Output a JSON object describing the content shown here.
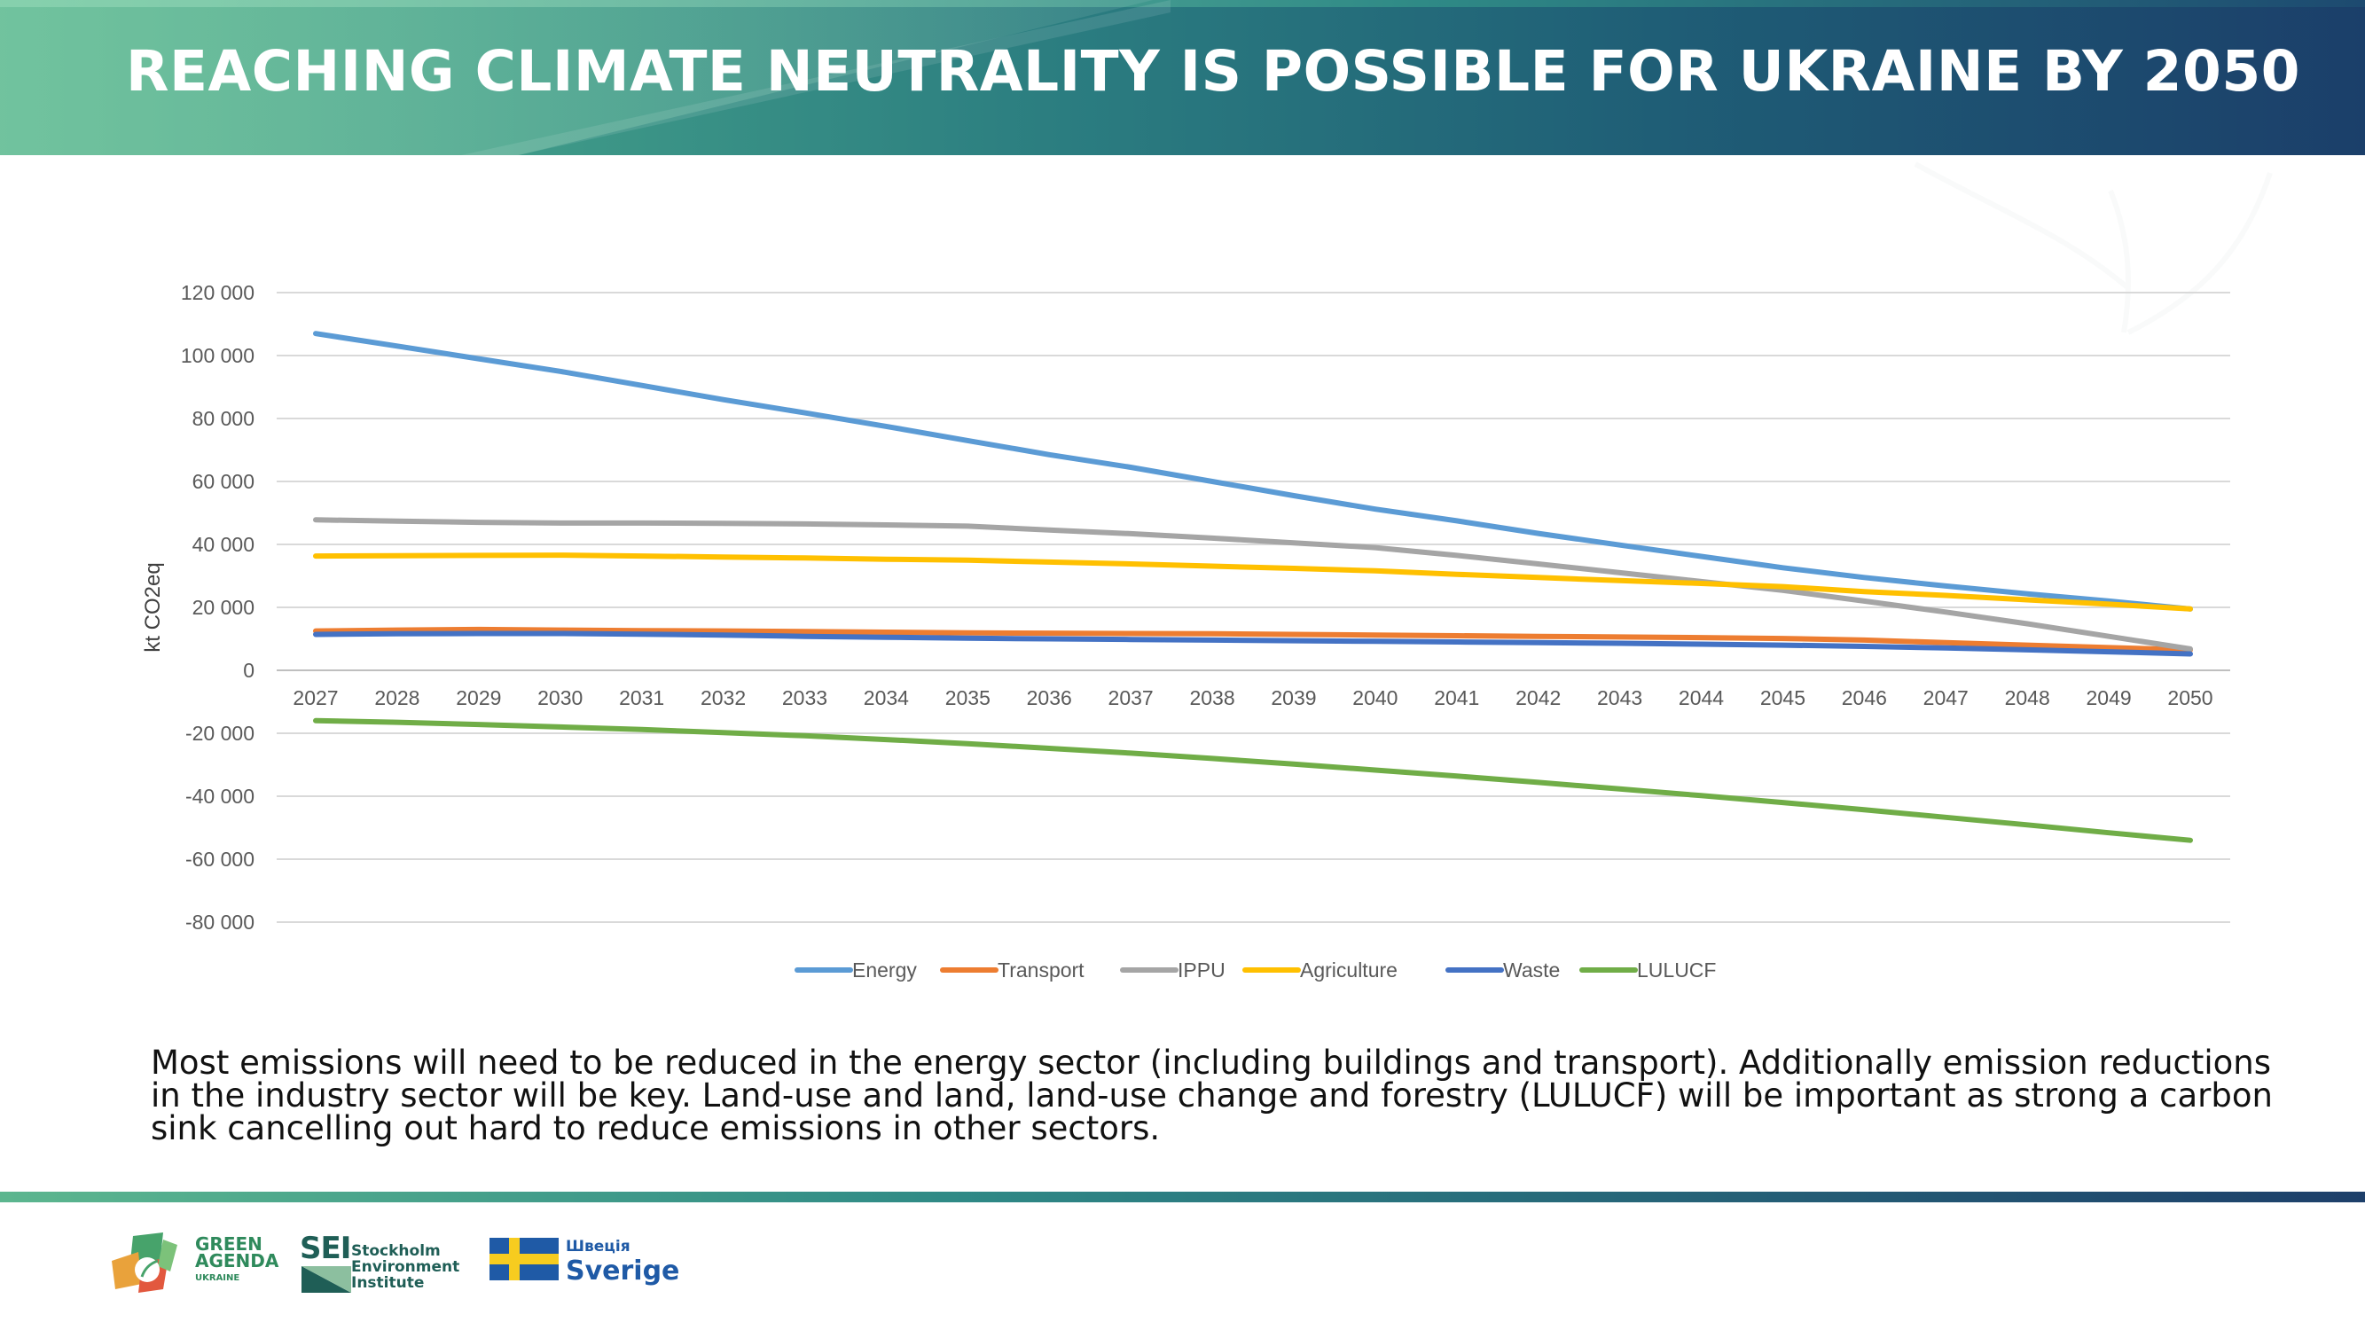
{
  "header": {
    "title": "REACHING CLIMATE NEUTRALITY IS POSSIBLE FOR UKRAINE BY 2050"
  },
  "caption": "Most emissions will need to be reduced in the energy sector (including buildings and transport). Additionally emission reductions in the industry sector will be key. Land-use and land, land-use change and forestry (LULUCF) will be important as strong a carbon sink cancelling out hard to reduce emissions in other sectors.",
  "logos": {
    "green_agenda": [
      "GREEN",
      "AGENDA",
      "UKRAINE"
    ],
    "sei": {
      "abbr": "SEI",
      "name": [
        "Stockholm",
        "Environment",
        "Institute"
      ]
    },
    "sweden": {
      "native": "Швеція",
      "name": "Sverige"
    }
  },
  "chart_data": {
    "type": "line",
    "title": "",
    "xlabel": "",
    "ylabel": "kt CO2eq",
    "ylim": [
      -80000,
      120000
    ],
    "yticks": [
      120000,
      100000,
      80000,
      60000,
      40000,
      20000,
      0,
      -20000,
      -40000,
      -60000,
      -80000
    ],
    "ytick_labels": [
      "120 000",
      "100 000",
      "80 000",
      "60 000",
      "40 000",
      "20 000",
      "0",
      "-20 000",
      "-40 000",
      "-60 000",
      "-80 000"
    ],
    "grid": true,
    "legend_position": "bottom",
    "x": [
      "2027",
      "2028",
      "2029",
      "2030",
      "2031",
      "2032",
      "2033",
      "2034",
      "2035",
      "2036",
      "2037",
      "2038",
      "2039",
      "2040",
      "2041",
      "2042",
      "2043",
      "2044",
      "2045",
      "2046",
      "2047",
      "2048",
      "2049",
      "2050"
    ],
    "series": [
      {
        "name": "Energy",
        "color": "#5b9bd5",
        "values": [
          107000,
          103000,
          99000,
          95000,
          90500,
          86000,
          81800,
          77500,
          73000,
          68500,
          64500,
          60000,
          55500,
          51200,
          47500,
          43500,
          39800,
          36200,
          32600,
          29500,
          26800,
          24300,
          22000,
          19500
        ]
      },
      {
        "name": "Transport",
        "color": "#ed7d31",
        "values": [
          12500,
          12800,
          13000,
          12800,
          12600,
          12500,
          12300,
          12100,
          11900,
          11800,
          11700,
          11600,
          11400,
          11200,
          11000,
          10800,
          10600,
          10400,
          10100,
          9600,
          8800,
          8000,
          7200,
          6500
        ]
      },
      {
        "name": "IPPU",
        "color": "#a5a5a5",
        "values": [
          47800,
          47400,
          47000,
          46800,
          46800,
          46700,
          46500,
          46200,
          45800,
          44600,
          43400,
          42000,
          40500,
          39000,
          36500,
          33800,
          31000,
          28200,
          25400,
          22000,
          18500,
          14800,
          10800,
          6800
        ]
      },
      {
        "name": "Agriculture",
        "color": "#ffc000",
        "values": [
          36300,
          36400,
          36500,
          36600,
          36300,
          36000,
          35700,
          35300,
          35000,
          34400,
          33800,
          33100,
          32400,
          31600,
          30500,
          29500,
          28500,
          27600,
          26600,
          25000,
          23800,
          22400,
          21000,
          19500
        ]
      },
      {
        "name": "Waste",
        "color": "#4472c4",
        "values": [
          11400,
          11600,
          11700,
          11700,
          11500,
          11200,
          10800,
          10500,
          10200,
          10000,
          9800,
          9600,
          9400,
          9200,
          9000,
          8800,
          8600,
          8300,
          8000,
          7600,
          7100,
          6500,
          5900,
          5200
        ]
      },
      {
        "name": "LULUCF",
        "color": "#70ad47",
        "values": [
          -16000,
          -16500,
          -17200,
          -18000,
          -18800,
          -19800,
          -20800,
          -22000,
          -23300,
          -24800,
          -26300,
          -28000,
          -29800,
          -31700,
          -33600,
          -35600,
          -37700,
          -39800,
          -42000,
          -44300,
          -46700,
          -49100,
          -51600,
          -54000
        ]
      }
    ]
  }
}
